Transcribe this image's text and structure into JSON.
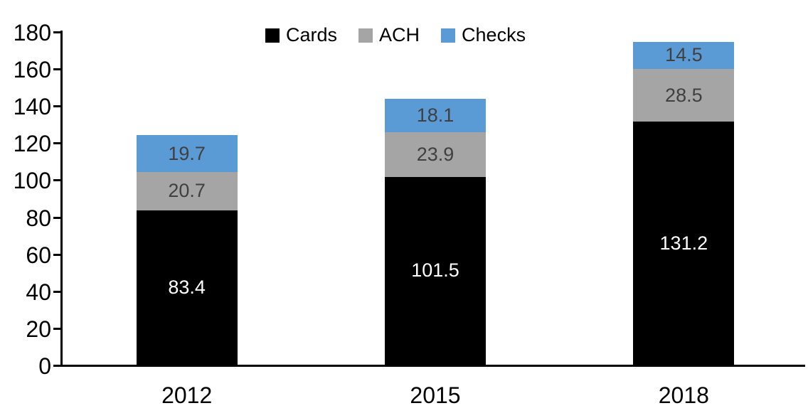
{
  "chart_data": {
    "type": "bar",
    "stacked": true,
    "title": "",
    "categories": [
      "2012",
      "2015",
      "2018"
    ],
    "series": [
      {
        "name": "Cards",
        "color": "#000000",
        "label_color": "#FFFFFF",
        "values": [
          83.4,
          101.5,
          131.2
        ]
      },
      {
        "name": "ACH",
        "color": "#A5A5A5",
        "label_color": "#404040",
        "values": [
          20.7,
          23.9,
          28.5
        ]
      },
      {
        "name": "Checks",
        "color": "#5B9BD5",
        "label_color": "#404040",
        "values": [
          19.7,
          18.1,
          14.5
        ]
      }
    ],
    "totals": [
      123.8,
      143.5,
      174.2
    ],
    "y_axis": {
      "min": 0,
      "max": 180,
      "step": 20,
      "tick_labels": [
        "0",
        "20",
        "40",
        "60",
        "80",
        "100",
        "120",
        "140",
        "160",
        "180"
      ]
    },
    "x_axis": {
      "tick_labels": [
        "2012",
        "2015",
        "2018"
      ]
    },
    "legend": {
      "position": "top",
      "entries": [
        "Cards",
        "ACH",
        "Checks"
      ]
    },
    "axis_color": "#000000",
    "background": "#FFFFFF",
    "grid": false
  }
}
